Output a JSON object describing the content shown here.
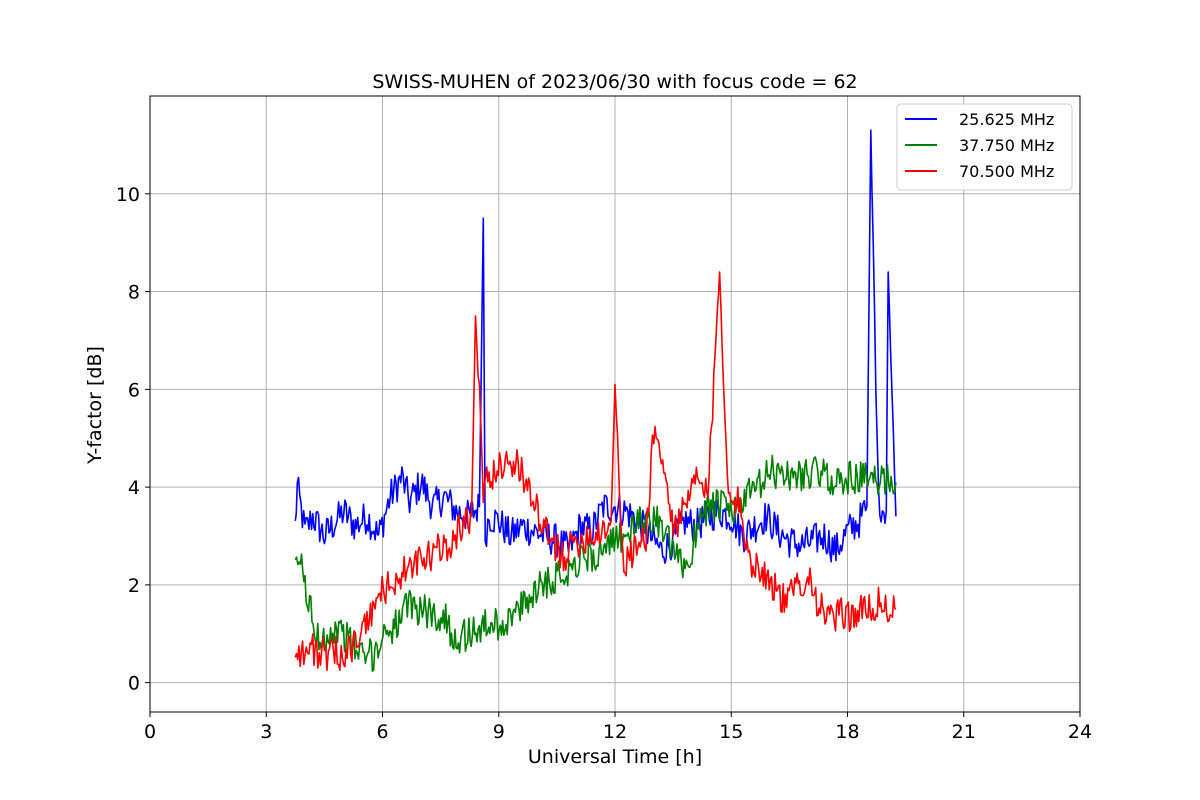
{
  "chart_data": {
    "type": "line",
    "title": "SWISS-MUHEN of 2023/06/30 with focus code = 62",
    "xlabel": "Universal Time [h]",
    "ylabel": "Y-factor [dB]",
    "xlim": [
      0,
      24
    ],
    "ylim": [
      -0.6,
      12.0
    ],
    "xticks": [
      0,
      3,
      6,
      9,
      12,
      15,
      18,
      21,
      24
    ],
    "yticks": [
      0,
      2,
      4,
      6,
      8,
      10
    ],
    "grid": true,
    "legend_position": "top-right",
    "series": [
      {
        "name": "25.625 MHz",
        "color": "#0000ff",
        "x": [
          3.75,
          3.8,
          4.0,
          4.2,
          4.5,
          4.8,
          5.0,
          5.3,
          5.6,
          5.9,
          6.2,
          6.5,
          6.7,
          7.0,
          7.3,
          7.6,
          7.9,
          8.2,
          8.5,
          8.6,
          8.65,
          8.75,
          9.0,
          9.3,
          9.6,
          9.9,
          10.2,
          10.5,
          10.8,
          11.1,
          11.4,
          11.7,
          12.0,
          12.3,
          12.6,
          12.9,
          13.2,
          13.5,
          13.8,
          14.1,
          14.4,
          14.7,
          15.0,
          15.3,
          15.6,
          15.9,
          16.2,
          16.5,
          16.8,
          17.1,
          17.4,
          17.7,
          18.0,
          18.3,
          18.5,
          18.6,
          18.8,
          19.0,
          19.05,
          19.25
        ],
        "y": [
          3.2,
          4.0,
          3.1,
          3.4,
          3.0,
          3.3,
          3.5,
          3.2,
          3.4,
          3.0,
          3.8,
          4.2,
          3.7,
          4.1,
          3.6,
          3.8,
          3.5,
          3.4,
          3.6,
          9.5,
          3.0,
          3.4,
          3.3,
          3.0,
          3.2,
          3.1,
          3.0,
          2.9,
          2.7,
          3.2,
          3.1,
          3.6,
          3.6,
          3.5,
          3.3,
          3.0,
          2.7,
          2.9,
          3.3,
          3.2,
          3.4,
          3.5,
          3.4,
          3.0,
          3.2,
          3.4,
          3.1,
          2.9,
          2.8,
          2.9,
          3.0,
          2.7,
          3.1,
          3.3,
          3.6,
          11.3,
          3.7,
          3.5,
          8.4,
          3.4
        ]
      },
      {
        "name": "37.750 MHz",
        "color": "#008000",
        "x": [
          3.75,
          3.85,
          4.0,
          4.3,
          4.6,
          4.9,
          5.2,
          5.5,
          5.8,
          6.1,
          6.4,
          6.7,
          7.0,
          7.3,
          7.6,
          7.9,
          8.2,
          8.5,
          8.8,
          9.1,
          9.4,
          9.7,
          10.0,
          10.3,
          10.6,
          10.9,
          11.2,
          11.5,
          11.8,
          12.1,
          12.4,
          12.7,
          13.0,
          13.3,
          13.6,
          13.9,
          14.2,
          14.5,
          14.8,
          15.1,
          15.4,
          15.7,
          16.0,
          16.3,
          16.6,
          16.9,
          17.2,
          17.5,
          17.8,
          18.1,
          18.4,
          18.7,
          19.0,
          19.25
        ],
        "y": [
          2.2,
          2.6,
          2.0,
          0.9,
          1.0,
          1.1,
          0.8,
          0.5,
          0.6,
          1.1,
          1.2,
          1.6,
          1.5,
          1.4,
          1.3,
          0.9,
          1.0,
          1.1,
          1.2,
          1.2,
          1.4,
          1.6,
          2.0,
          2.1,
          2.2,
          2.4,
          2.6,
          2.6,
          2.7,
          3.0,
          3.1,
          3.3,
          3.4,
          3.0,
          2.5,
          2.4,
          3.5,
          3.6,
          3.6,
          3.5,
          3.8,
          4.0,
          4.3,
          4.3,
          4.2,
          4.3,
          4.3,
          4.2,
          4.1,
          4.2,
          4.2,
          4.1,
          4.2,
          4.1
        ]
      },
      {
        "name": "70.500 MHz",
        "color": "#ff0000",
        "x": [
          3.75,
          4.0,
          4.2,
          4.4,
          4.6,
          4.8,
          5.0,
          5.3,
          5.6,
          5.9,
          6.2,
          6.5,
          6.8,
          7.1,
          7.4,
          7.7,
          8.0,
          8.3,
          8.4,
          8.6,
          8.9,
          9.2,
          9.5,
          9.8,
          10.1,
          10.4,
          10.7,
          11.0,
          11.3,
          11.6,
          11.9,
          12.0,
          12.2,
          12.5,
          12.8,
          13.0,
          13.2,
          13.5,
          13.8,
          14.1,
          14.4,
          14.7,
          14.9,
          15.2,
          15.5,
          15.8,
          16.1,
          16.4,
          16.7,
          17.0,
          17.3,
          17.6,
          17.9,
          18.2,
          18.5,
          18.8,
          19.1,
          19.25
        ],
        "y": [
          0.7,
          0.6,
          0.7,
          0.6,
          0.5,
          0.6,
          0.6,
          0.8,
          1.2,
          1.8,
          2.0,
          2.2,
          2.4,
          2.5,
          2.7,
          2.8,
          3.2,
          3.4,
          7.5,
          4.0,
          4.3,
          4.6,
          4.4,
          4.0,
          3.2,
          2.8,
          2.6,
          2.9,
          3.0,
          3.1,
          3.3,
          6.1,
          2.4,
          2.7,
          3.0,
          5.2,
          4.6,
          3.2,
          3.5,
          4.2,
          3.8,
          8.4,
          4.2,
          3.6,
          2.5,
          2.3,
          2.0,
          1.6,
          2.0,
          2.2,
          1.5,
          1.3,
          1.4,
          1.4,
          1.5,
          1.6,
          1.5,
          1.5
        ]
      }
    ]
  }
}
